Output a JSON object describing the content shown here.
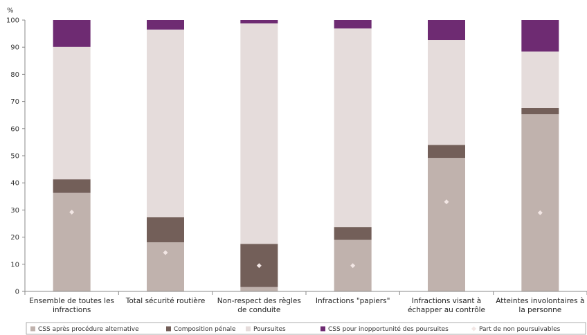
{
  "chart_data": {
    "type": "bar",
    "stacked": true,
    "ylabel": "%",
    "ylim": [
      0,
      100
    ],
    "yticks": [
      0,
      10,
      20,
      30,
      40,
      50,
      60,
      70,
      80,
      90,
      100
    ],
    "grid": false,
    "legend_position": "bottom",
    "categories": [
      [
        "Ensemble de toutes les",
        "infractions"
      ],
      [
        "Total sécurité routière"
      ],
      [
        "Non-respect des règles",
        "de conduite"
      ],
      [
        "Infractions \"papiers\""
      ],
      [
        "Infractions visant à",
        "échapper au contrôle"
      ],
      [
        "Atteintes involontaires à",
        "la personne"
      ]
    ],
    "series": [
      {
        "name": "CSS après procédure alternative",
        "color": "#c0b2ad",
        "values": [
          36.3,
          18.1,
          1.6,
          19.0,
          49.2,
          65.3
        ]
      },
      {
        "name": "Composition pénale",
        "color": "#735f59",
        "values": [
          5.0,
          9.2,
          15.9,
          4.7,
          4.8,
          2.3
        ]
      },
      {
        "name": "Poursuites",
        "color": "#e5dcdb",
        "values": [
          48.8,
          69.2,
          81.3,
          73.2,
          38.6,
          20.8
        ]
      },
      {
        "name": "CSS pour inopportunité des poursuites",
        "color": "#6e2b72",
        "values": [
          9.9,
          3.5,
          1.2,
          3.1,
          7.4,
          11.6
        ]
      }
    ],
    "markers": {
      "name": "Part de non poursuivables",
      "color": "#f2e6e4",
      "values": [
        29.2,
        14.3,
        9.5,
        9.5,
        33.0,
        29.0
      ]
    }
  }
}
